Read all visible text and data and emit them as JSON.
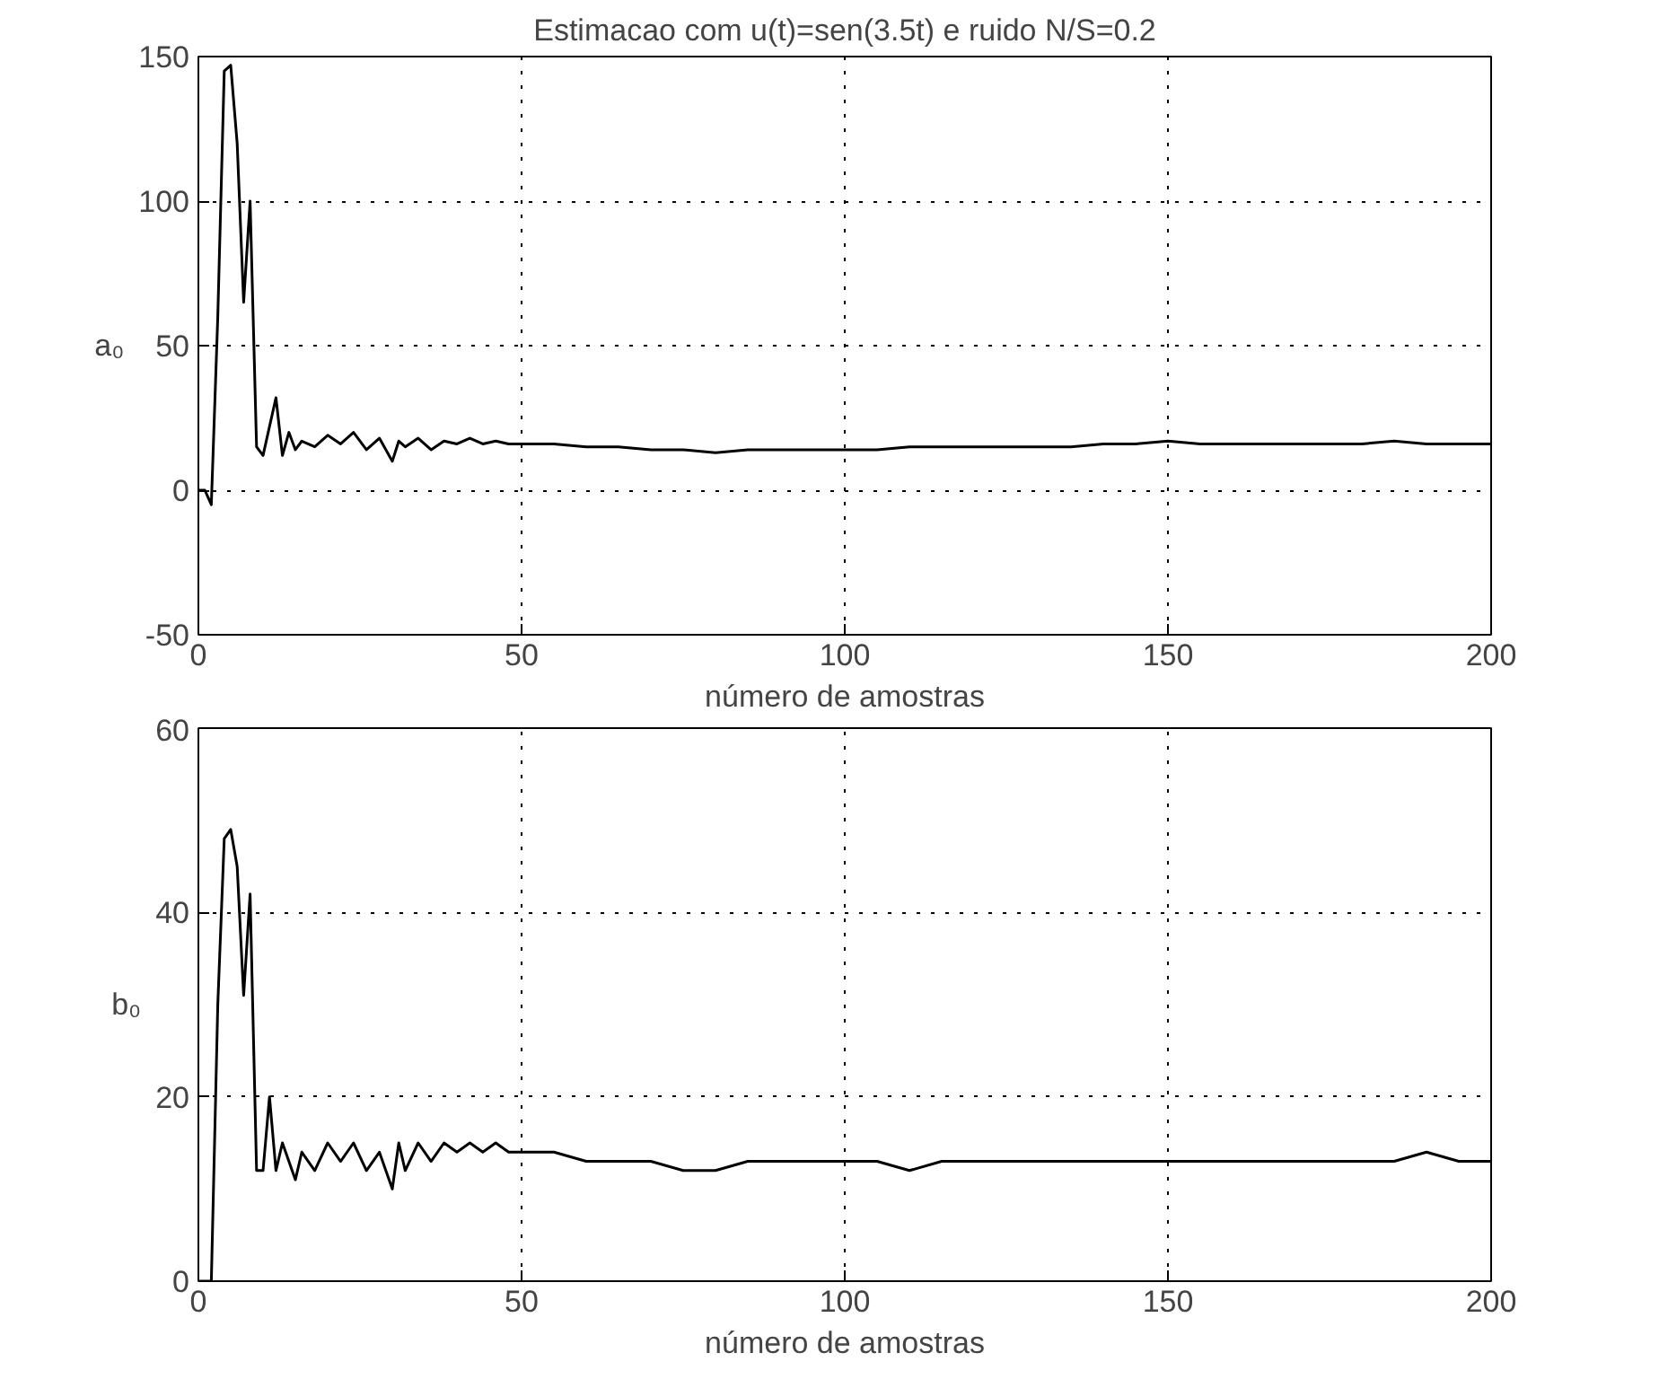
{
  "chart_data": [
    {
      "type": "line",
      "title": "Estimacao com u(t)=sen(3.5t) e ruido N/S=0.2",
      "xlabel": "número de amostras",
      "ylabel": "a₀",
      "xlim": [
        0,
        200
      ],
      "ylim": [
        -50,
        150
      ],
      "xticks": [
        0,
        50,
        100,
        150,
        200
      ],
      "yticks": [
        -50,
        0,
        50,
        100,
        150
      ],
      "grid": true,
      "series": [
        {
          "color": "#000000",
          "x": [
            0,
            1,
            2,
            3,
            4,
            5,
            6,
            7,
            8,
            9,
            10,
            11,
            12,
            13,
            14,
            15,
            16,
            18,
            20,
            22,
            24,
            26,
            28,
            30,
            31,
            32,
            34,
            36,
            38,
            40,
            42,
            44,
            46,
            48,
            50,
            55,
            60,
            65,
            70,
            75,
            80,
            85,
            90,
            95,
            100,
            105,
            110,
            115,
            120,
            125,
            130,
            135,
            140,
            145,
            150,
            155,
            160,
            165,
            170,
            175,
            180,
            185,
            190,
            195,
            200
          ],
          "values": [
            0,
            0,
            -5,
            60,
            145,
            147,
            120,
            65,
            100,
            15,
            12,
            22,
            32,
            12,
            20,
            14,
            17,
            15,
            19,
            16,
            20,
            14,
            18,
            10,
            17,
            15,
            18,
            14,
            17,
            16,
            18,
            16,
            17,
            16,
            16,
            16,
            15,
            15,
            14,
            14,
            13,
            14,
            14,
            14,
            14,
            14,
            15,
            15,
            15,
            15,
            15,
            15,
            16,
            16,
            17,
            16,
            16,
            16,
            16,
            16,
            16,
            17,
            16,
            16,
            16
          ]
        }
      ]
    },
    {
      "type": "line",
      "xlabel": "número de amostras",
      "ylabel": "b₀",
      "xlim": [
        0,
        200
      ],
      "ylim": [
        0,
        60
      ],
      "xticks": [
        0,
        50,
        100,
        150,
        200
      ],
      "yticks": [
        0,
        20,
        40,
        60
      ],
      "grid": true,
      "series": [
        {
          "color": "#000000",
          "x": [
            0,
            1,
            2,
            3,
            4,
            5,
            6,
            7,
            8,
            9,
            10,
            11,
            12,
            13,
            14,
            15,
            16,
            18,
            20,
            22,
            24,
            26,
            28,
            30,
            31,
            32,
            34,
            36,
            38,
            40,
            42,
            44,
            46,
            48,
            50,
            55,
            60,
            65,
            70,
            75,
            80,
            85,
            90,
            95,
            100,
            105,
            110,
            115,
            120,
            125,
            130,
            135,
            140,
            145,
            150,
            155,
            160,
            165,
            170,
            175,
            180,
            185,
            190,
            195,
            200
          ],
          "values": [
            0,
            0,
            0,
            30,
            48,
            49,
            45,
            31,
            42,
            12,
            12,
            20,
            12,
            15,
            13,
            11,
            14,
            12,
            15,
            13,
            15,
            12,
            14,
            10,
            15,
            12,
            15,
            13,
            15,
            14,
            15,
            14,
            15,
            14,
            14,
            14,
            13,
            13,
            13,
            12,
            12,
            13,
            13,
            13,
            13,
            13,
            12,
            13,
            13,
            13,
            13,
            13,
            13,
            13,
            13,
            13,
            13,
            13,
            13,
            13,
            13,
            13,
            14,
            13,
            13
          ]
        }
      ]
    }
  ]
}
